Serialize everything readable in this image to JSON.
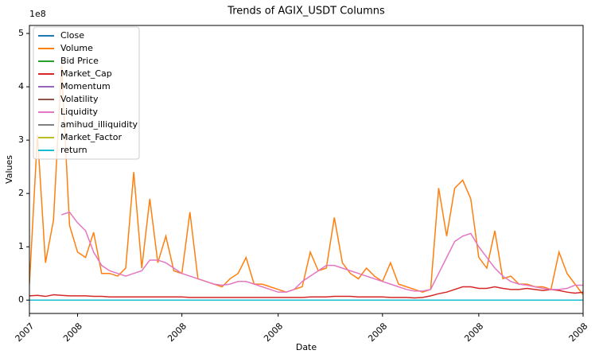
{
  "chart_data": {
    "type": "line",
    "title": "Trends of AGIX_USDT Columns",
    "x_label": "Date",
    "y_label": "Values",
    "y_offset_label": "1e8",
    "xlim": [
      0,
      69
    ],
    "xticks": [
      {
        "value": 0,
        "label": "2007"
      },
      {
        "value": 6,
        "label": "2008"
      },
      {
        "value": 19,
        "label": "2008"
      },
      {
        "value": 31,
        "label": "2008"
      },
      {
        "value": 44,
        "label": "2008"
      },
      {
        "value": 56,
        "label": "2008"
      },
      {
        "value": 69,
        "label": "2008"
      }
    ],
    "ylim": [
      -0.25,
      5.15
    ],
    "yticks": [
      0,
      1,
      2,
      3,
      4,
      5
    ],
    "grid": false,
    "legend": "upper left",
    "series": [
      {
        "name": "Close",
        "color": "#1f77b4",
        "values": [
          0,
          0,
          0,
          0,
          0,
          0,
          0,
          0,
          0,
          0,
          0,
          0,
          0,
          0,
          0,
          0,
          0,
          0,
          0,
          0,
          0,
          0,
          0,
          0,
          0,
          0,
          0,
          0,
          0,
          0,
          0,
          0,
          0,
          0,
          0,
          0,
          0,
          0,
          0,
          0,
          0,
          0,
          0,
          0,
          0,
          0,
          0,
          0,
          0,
          0,
          0,
          0,
          0,
          0,
          0,
          0,
          0,
          0,
          0,
          0,
          0,
          0,
          0,
          0,
          0,
          0,
          0,
          0,
          0,
          0
        ]
      },
      {
        "name": "Volume",
        "color": "#ff7f0e",
        "values": [
          0.3,
          3.1,
          0.7,
          1.5,
          4.4,
          1.4,
          0.9,
          0.8,
          1.27,
          0.5,
          0.5,
          0.45,
          0.6,
          2.4,
          0.6,
          1.9,
          0.7,
          1.2,
          0.55,
          0.5,
          1.65,
          0.4,
          0.35,
          0.3,
          0.25,
          0.4,
          0.5,
          0.8,
          0.3,
          0.3,
          0.25,
          0.2,
          0.15,
          0.2,
          0.25,
          0.9,
          0.55,
          0.6,
          1.55,
          0.7,
          0.5,
          0.4,
          0.6,
          0.45,
          0.35,
          0.7,
          0.3,
          0.25,
          0.2,
          0.15,
          0.2,
          2.1,
          1.2,
          2.1,
          2.25,
          1.9,
          0.8,
          0.6,
          1.3,
          0.4,
          0.45,
          0.3,
          0.3,
          0.25,
          0.25,
          0.2,
          0.9,
          0.5,
          0.3,
          0.1
        ]
      },
      {
        "name": "Bid Price",
        "color": "#2ca02c",
        "values": [
          0,
          0,
          0,
          0,
          0,
          0,
          0,
          0,
          0,
          0,
          0,
          0,
          0,
          0,
          0,
          0,
          0,
          0,
          0,
          0,
          0,
          0,
          0,
          0,
          0,
          0,
          0,
          0,
          0,
          0,
          0,
          0,
          0,
          0,
          0,
          0,
          0,
          0,
          0,
          0,
          0,
          0,
          0,
          0,
          0,
          0,
          0,
          0,
          0,
          0,
          0,
          0,
          0,
          0,
          0,
          0,
          0,
          0,
          0,
          0,
          0,
          0,
          0,
          0,
          0,
          0,
          0,
          0,
          0,
          0
        ]
      },
      {
        "name": "Market_Cap",
        "color": "#d62728",
        "values": [
          0.08,
          0.09,
          0.07,
          0.1,
          0.09,
          0.08,
          0.08,
          0.08,
          0.07,
          0.07,
          0.06,
          0.06,
          0.06,
          0.06,
          0.06,
          0.06,
          0.06,
          0.06,
          0.06,
          0.06,
          0.05,
          0.05,
          0.05,
          0.05,
          0.05,
          0.05,
          0.05,
          0.05,
          0.05,
          0.05,
          0.05,
          0.05,
          0.05,
          0.05,
          0.05,
          0.06,
          0.06,
          0.06,
          0.07,
          0.07,
          0.07,
          0.06,
          0.06,
          0.06,
          0.06,
          0.05,
          0.05,
          0.05,
          0.04,
          0.05,
          0.08,
          0.12,
          0.15,
          0.2,
          0.25,
          0.25,
          0.22,
          0.22,
          0.25,
          0.22,
          0.2,
          0.2,
          0.22,
          0.2,
          0.18,
          0.2,
          0.18,
          0.15,
          0.13,
          0.15
        ]
      },
      {
        "name": "Momentum",
        "color": "#9467bd",
        "values": [
          0,
          0,
          0,
          0,
          0,
          0,
          0,
          0,
          0,
          0,
          0,
          0,
          0,
          0,
          0,
          0,
          0,
          0,
          0,
          0,
          0,
          0,
          0,
          0,
          0,
          0,
          0,
          0,
          0,
          0,
          0,
          0,
          0,
          0,
          0,
          0,
          0,
          0,
          0,
          0,
          0,
          0,
          0,
          0,
          0,
          0,
          0,
          0,
          0,
          0,
          0,
          0,
          0,
          0,
          0,
          0,
          0,
          0,
          0,
          0,
          0,
          0,
          0,
          0,
          0,
          0,
          0,
          0,
          0,
          0
        ]
      },
      {
        "name": "Volatility",
        "color": "#8c564b",
        "values": [
          0,
          0,
          0,
          0,
          0,
          0,
          0,
          0,
          0,
          0,
          0,
          0,
          0,
          0,
          0,
          0,
          0,
          0,
          0,
          0,
          0,
          0,
          0,
          0,
          0,
          0,
          0,
          0,
          0,
          0,
          0,
          0,
          0,
          0,
          0,
          0,
          0,
          0,
          0,
          0,
          0,
          0,
          0,
          0,
          0,
          0,
          0,
          0,
          0,
          0,
          0,
          0,
          0,
          0,
          0,
          0,
          0,
          0,
          0,
          0,
          0,
          0,
          0,
          0,
          0,
          0,
          0,
          0,
          0,
          0
        ]
      },
      {
        "name": "Liquidity",
        "color": "#e377c2",
        "values": [
          null,
          null,
          null,
          null,
          1.6,
          1.65,
          1.45,
          1.3,
          0.9,
          0.65,
          0.55,
          0.5,
          0.45,
          0.5,
          0.55,
          0.75,
          0.75,
          0.7,
          0.6,
          0.5,
          0.45,
          0.4,
          0.35,
          0.3,
          0.28,
          0.3,
          0.35,
          0.35,
          0.3,
          0.25,
          0.2,
          0.15,
          0.15,
          0.2,
          0.35,
          0.45,
          0.55,
          0.65,
          0.65,
          0.6,
          0.55,
          0.5,
          0.45,
          0.4,
          0.35,
          0.3,
          0.25,
          0.2,
          0.17,
          0.17,
          0.2,
          0.5,
          0.8,
          1.1,
          1.2,
          1.25,
          1.0,
          0.8,
          0.6,
          0.45,
          0.35,
          0.3,
          0.28,
          0.25,
          0.22,
          0.2,
          0.2,
          0.22,
          0.28,
          0.28
        ]
      },
      {
        "name": "amihud_illiquidity",
        "color": "#7f7f7f",
        "values": [
          0,
          0,
          0,
          0,
          0,
          0,
          0,
          0,
          0,
          0,
          0,
          0,
          0,
          0,
          0,
          0,
          0,
          0,
          0,
          0,
          0,
          0,
          0,
          0,
          0,
          0,
          0,
          0,
          0,
          0,
          0,
          0,
          0,
          0,
          0,
          0,
          0,
          0,
          0,
          0,
          0,
          0,
          0,
          0,
          0,
          0,
          0,
          0,
          0,
          0,
          0,
          0,
          0,
          0,
          0,
          0,
          0,
          0,
          0,
          0,
          0,
          0,
          0,
          0,
          0,
          0,
          0,
          0,
          0,
          0
        ]
      },
      {
        "name": "Market_Factor",
        "color": "#bcbd22",
        "values": [
          0,
          0,
          0,
          0,
          0,
          0,
          0,
          0,
          0,
          0,
          0,
          0,
          0,
          0,
          0,
          0,
          0,
          0,
          0,
          0,
          0,
          0,
          0,
          0,
          0,
          0,
          0,
          0,
          0,
          0,
          0,
          0,
          0,
          0,
          0,
          0,
          0,
          0,
          0,
          0,
          0,
          0,
          0,
          0,
          0,
          0,
          0,
          0,
          0,
          0,
          0,
          0,
          0,
          0,
          0,
          0,
          0,
          0,
          0,
          0,
          0,
          0,
          0,
          0,
          0,
          0,
          0,
          0,
          0,
          0
        ]
      },
      {
        "name": "return",
        "color": "#17becf",
        "values": [
          0,
          0,
          0,
          0,
          0,
          0,
          0,
          0,
          0,
          0,
          0,
          0,
          0,
          0,
          0,
          0,
          0,
          0,
          0,
          0,
          0,
          0,
          0,
          0,
          0,
          0,
          0,
          0,
          0,
          0,
          0,
          0,
          0,
          0,
          0,
          0,
          0,
          0,
          0,
          0,
          0,
          0,
          0,
          0,
          0,
          0,
          0,
          0,
          0,
          0,
          0,
          0,
          0,
          0,
          0,
          0,
          0,
          0,
          0,
          0,
          0,
          0,
          0,
          0,
          0,
          0,
          0,
          0,
          0,
          0
        ]
      }
    ]
  }
}
